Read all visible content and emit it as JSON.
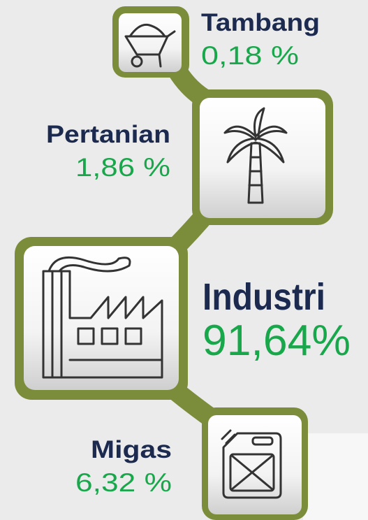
{
  "items": [
    {
      "label": "Tambang",
      "value": "0,18 %"
    },
    {
      "label": "Pertanian",
      "value": "1,86 %"
    },
    {
      "label": "Industri",
      "value": "91,64%"
    },
    {
      "label": "Migas",
      "value": "6,32 %"
    }
  ]
}
